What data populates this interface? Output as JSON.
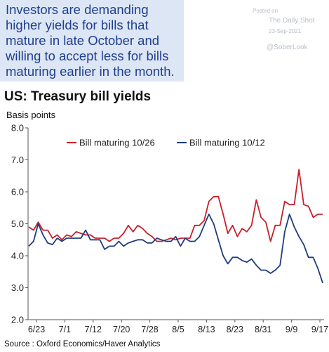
{
  "callout": {
    "lines": [
      "Investors are demanding",
      "higher yields for bills that",
      "mature in late October and",
      "willing to accept less for bills",
      "maturing earlier in the month."
    ]
  },
  "watermark": {
    "posted": "Posted on",
    "outlet": "The Daily Shot",
    "date": "23-Sep-2021",
    "handle": "@SoberLook"
  },
  "source": "Source : Oxford Economics/Haver Analytics",
  "chart_data": {
    "type": "line",
    "title": "US: Treasury bill yields",
    "ylabel": "Basis points",
    "ylim": [
      2.0,
      8.0
    ],
    "yticks": [
      "8.0",
      "7.0",
      "6.0",
      "5.0",
      "4.0",
      "3.0",
      "2.0"
    ],
    "xticks": [
      "6/23",
      "7/1",
      "7/12",
      "7/20",
      "7/28",
      "8/5",
      "8/13",
      "8/23",
      "8/31",
      "9/9",
      "9/17"
    ],
    "grid": false,
    "legend_position": "top",
    "series": [
      {
        "name": "Bill maturing 10/26",
        "color": "#c8202a",
        "values": [
          4.9,
          4.8,
          5.05,
          4.8,
          4.8,
          4.55,
          4.65,
          4.5,
          4.65,
          4.6,
          4.75,
          4.7,
          4.65,
          4.65,
          4.55,
          4.55,
          4.55,
          4.45,
          4.55,
          4.55,
          4.7,
          4.95,
          4.75,
          4.95,
          4.85,
          4.7,
          4.6,
          4.45,
          4.45,
          4.5,
          4.55,
          4.5,
          4.55,
          4.55,
          4.55,
          4.95,
          4.95,
          5.1,
          5.7,
          5.85,
          5.85,
          5.3,
          4.7,
          4.95,
          4.6,
          4.85,
          4.75,
          4.95,
          5.75,
          5.2,
          5.05,
          4.45,
          4.95,
          4.95,
          5.7,
          5.6,
          5.6,
          6.7,
          5.6,
          5.55,
          5.2,
          5.3,
          5.3
        ]
      },
      {
        "name": "Bill maturing 10/12",
        "color": "#1f3c7a",
        "values": [
          4.3,
          4.45,
          5.0,
          4.65,
          4.4,
          4.35,
          4.55,
          4.45,
          4.55,
          4.55,
          4.55,
          4.55,
          4.8,
          4.5,
          4.5,
          4.5,
          4.2,
          4.3,
          4.3,
          4.45,
          4.3,
          4.4,
          4.45,
          4.5,
          4.5,
          4.4,
          4.4,
          4.55,
          4.5,
          4.45,
          4.45,
          4.6,
          4.3,
          4.55,
          4.45,
          4.45,
          4.6,
          4.95,
          5.3,
          5.0,
          4.5,
          4.0,
          3.75,
          3.95,
          3.95,
          3.85,
          3.8,
          3.9,
          3.7,
          3.55,
          3.55,
          3.45,
          3.55,
          3.7,
          4.75,
          5.3,
          4.9,
          4.6,
          4.35,
          3.95,
          3.95,
          3.6,
          3.15
        ]
      }
    ]
  }
}
